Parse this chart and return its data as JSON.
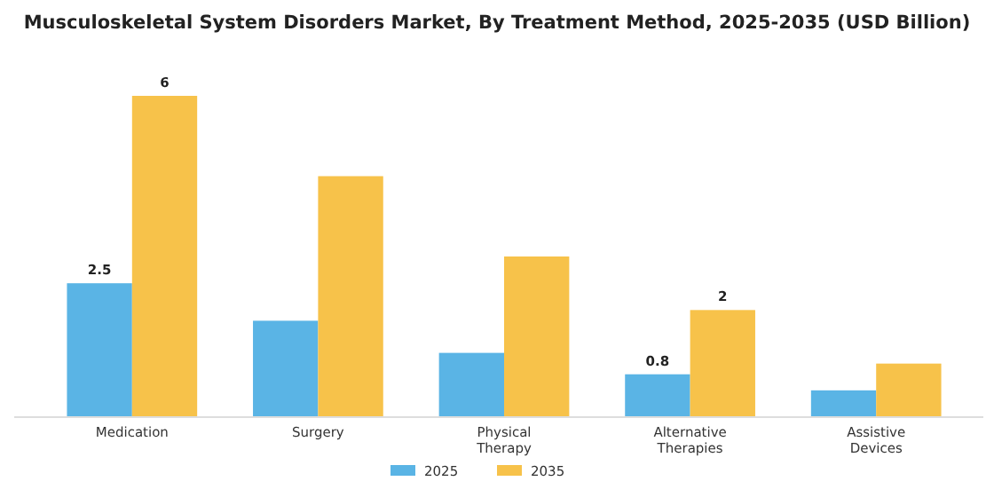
{
  "chart_data": {
    "type": "bar",
    "title": "Musculoskeletal System Disorders Market, By Treatment Method, 2025-2035 (USD Billion)",
    "categories": [
      "Medication",
      "Surgery",
      "Physical Therapy",
      "Alternative Therapies",
      "Assistive Devices"
    ],
    "series": [
      {
        "name": "2025",
        "color": "#5ab4e5",
        "values": [
          2.5,
          1.8,
          1.2,
          0.8,
          0.5
        ],
        "value_labels": [
          "2.5",
          null,
          null,
          "0.8",
          null
        ]
      },
      {
        "name": "2035",
        "color": "#f7c24a",
        "values": [
          6,
          4.5,
          3.0,
          2,
          1.0
        ],
        "value_labels": [
          "6",
          null,
          null,
          "2",
          null
        ]
      }
    ],
    "legend": "bottom",
    "grid": false
  }
}
